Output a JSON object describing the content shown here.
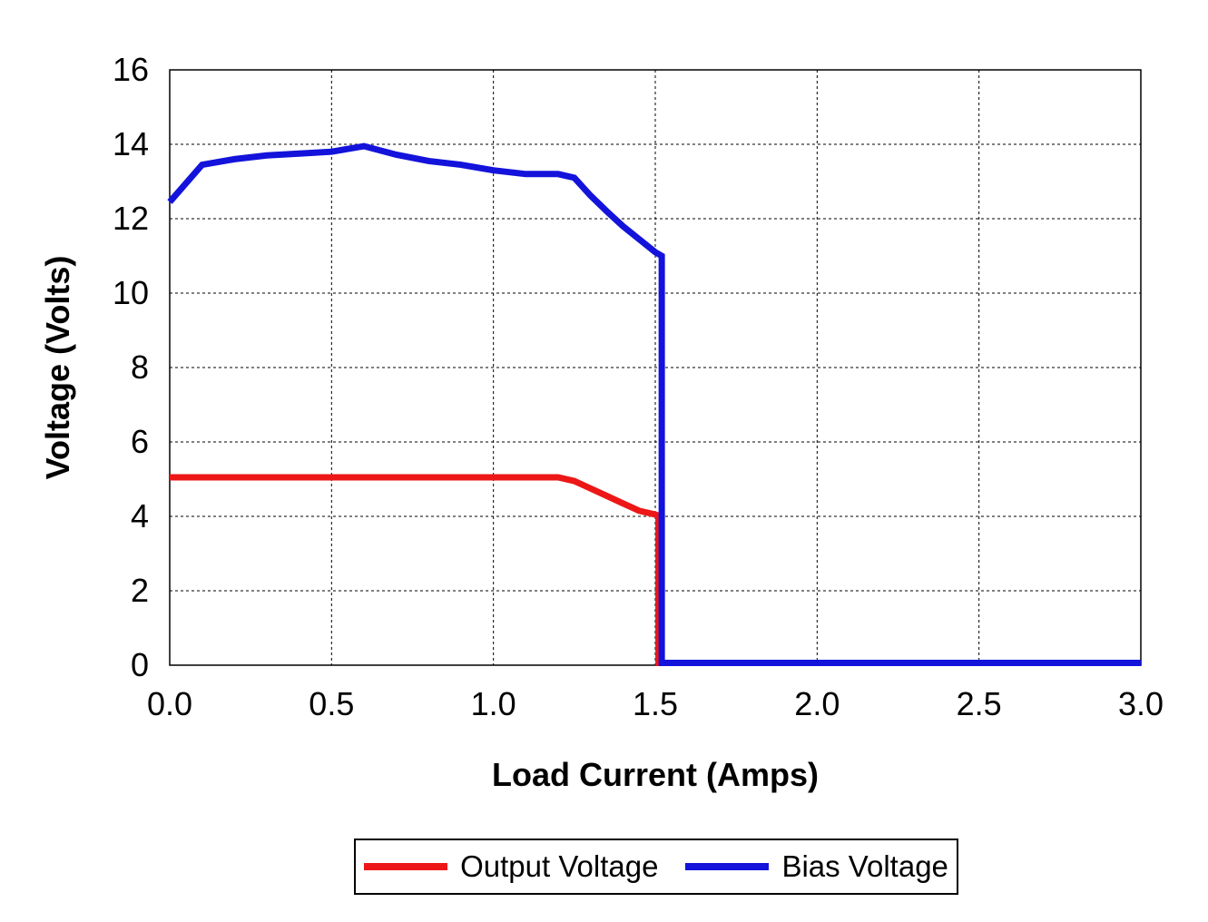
{
  "chart_data": {
    "type": "line",
    "title": "",
    "xlabel": "Load Current (Amps)",
    "ylabel": "Voltage (Volts)",
    "xlim": [
      0,
      3
    ],
    "ylim": [
      0,
      16
    ],
    "x_tick_labels": [
      "0.0",
      "0.5",
      "1.0",
      "1.5",
      "2.0",
      "2.5",
      "3.0"
    ],
    "y_tick_labels": [
      "0",
      "2",
      "4",
      "6",
      "8",
      "10",
      "12",
      "14",
      "16"
    ],
    "grid": "dashed-both-axes",
    "grid_color": "#000000",
    "axis_color": "#000000",
    "plot_background": "#ffffff",
    "legend_position": "bottom-boxed",
    "series": [
      {
        "name": "Output Voltage",
        "color": "#ed1717",
        "points": [
          [
            0,
            5.05
          ],
          [
            0.2,
            5.05
          ],
          [
            0.4,
            5.05
          ],
          [
            0.6,
            5.05
          ],
          [
            0.8,
            5.05
          ],
          [
            1.0,
            5.05
          ],
          [
            1.2,
            5.05
          ],
          [
            1.25,
            4.95
          ],
          [
            1.3,
            4.75
          ],
          [
            1.35,
            4.55
          ],
          [
            1.4,
            4.35
          ],
          [
            1.45,
            4.15
          ],
          [
            1.5,
            4.05
          ],
          [
            1.51,
            4.02
          ],
          [
            1.51,
            0
          ],
          [
            3,
            0
          ]
        ]
      },
      {
        "name": "Bias Voltage",
        "color": "#1313db",
        "points": [
          [
            0,
            12.45
          ],
          [
            0.1,
            13.45
          ],
          [
            0.2,
            13.6
          ],
          [
            0.3,
            13.7
          ],
          [
            0.4,
            13.75
          ],
          [
            0.5,
            13.8
          ],
          [
            0.6,
            13.95
          ],
          [
            0.7,
            13.72
          ],
          [
            0.8,
            13.55
          ],
          [
            0.9,
            13.45
          ],
          [
            1.0,
            13.3
          ],
          [
            1.1,
            13.2
          ],
          [
            1.2,
            13.2
          ],
          [
            1.25,
            13.1
          ],
          [
            1.3,
            12.62
          ],
          [
            1.35,
            12.2
          ],
          [
            1.4,
            11.8
          ],
          [
            1.45,
            11.45
          ],
          [
            1.5,
            11.1
          ],
          [
            1.52,
            11.0
          ],
          [
            1.52,
            0
          ],
          [
            3,
            0
          ]
        ]
      }
    ]
  }
}
